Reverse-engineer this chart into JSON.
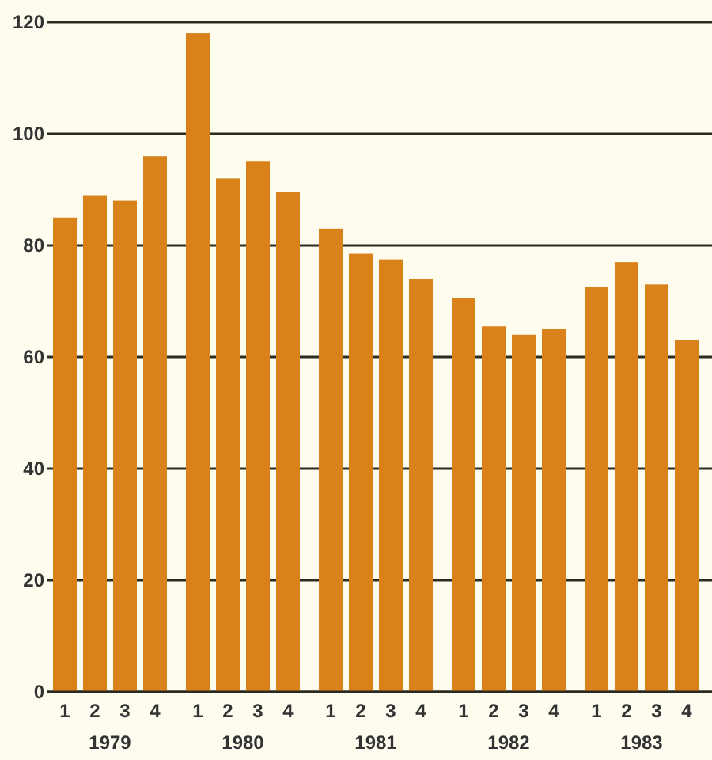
{
  "chart_data": {
    "type": "bar",
    "categories": [
      "1",
      "2",
      "3",
      "4",
      "1",
      "2",
      "3",
      "4",
      "1",
      "2",
      "3",
      "4",
      "1",
      "2",
      "3",
      "4",
      "1",
      "2",
      "3",
      "4"
    ],
    "values": [
      85,
      89,
      88,
      96,
      118,
      92,
      95,
      89.5,
      83,
      78.5,
      77.5,
      74,
      70.5,
      65.5,
      64,
      65,
      72.5,
      77,
      73,
      63
    ],
    "color": "#d9821a",
    "annotations": [
      "1979",
      "1980",
      "1981",
      "1982",
      "1983"
    ],
    "ylim": [
      0,
      120
    ],
    "yticks": [
      0,
      20,
      40,
      60,
      80,
      100,
      120
    ],
    "grid": "y"
  }
}
